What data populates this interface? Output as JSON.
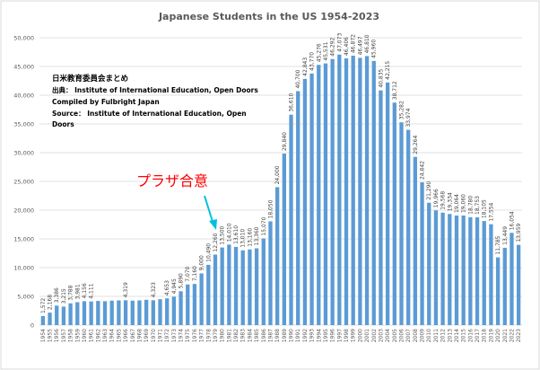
{
  "chart_data": {
    "type": "bar",
    "title": "Japanese Students in the US 1954-2023",
    "categories": [
      "1954",
      "1955",
      "1956",
      "1957",
      "1958",
      "1959",
      "1960",
      "1961",
      "1962",
      "1963",
      "1964",
      "1965",
      "1966",
      "1967",
      "1968",
      "1969",
      "1970",
      "1971",
      "1972",
      "1973",
      "1974",
      "1975",
      "1976",
      "1977",
      "1978",
      "1979",
      "1980",
      "1981",
      "1982",
      "1983",
      "1984",
      "1985",
      "1986",
      "1987",
      "1988",
      "1989",
      "1990",
      "1991",
      "1992",
      "1993",
      "1994",
      "1995",
      "1996",
      "1997",
      "1998",
      "1999",
      "2000",
      "2001",
      "2002",
      "2003",
      "2004",
      "2005",
      "2006",
      "2007",
      "2008",
      "2009",
      "2010",
      "2011",
      "2012",
      "2013",
      "2014",
      "2015",
      "2016",
      "2017",
      "2018",
      "2019",
      "2020",
      "2021",
      "2022",
      "2023"
    ],
    "values": [
      1572,
      2168,
      3386,
      3215,
      3788,
      3981,
      4156,
      4111,
      4200,
      4150,
      4250,
      4300,
      4319,
      4250,
      4300,
      4400,
      4323,
      4500,
      4653,
      4945,
      5890,
      7070,
      7160,
      9000,
      10490,
      12260,
      13500,
      14010,
      13610,
      13010,
      13160,
      13360,
      15070,
      18050,
      24000,
      29840,
      36610,
      40700,
      42843,
      43770,
      45276,
      45531,
      46292,
      47073,
      46406,
      46872,
      46497,
      46810,
      45960,
      40835,
      42215,
      38712,
      35282,
      33974,
      29264,
      24842,
      21290,
      19966,
      19568,
      19334,
      19064,
      19060,
      18780,
      18753,
      18105,
      17554,
      11785,
      13449,
      16054,
      13959
    ],
    "value_labels": [
      "1,572",
      "2,168",
      "3,386",
      "3,215",
      "3,788",
      "3,981",
      "4,156",
      "4,111",
      null,
      null,
      null,
      null,
      "4,319",
      null,
      null,
      null,
      "4,323",
      null,
      "4,653",
      "4,945",
      "5,890",
      "7,070",
      "7,160",
      "9,000",
      "10,490",
      "12,260",
      "13,500",
      "14,010",
      "13,610",
      "13,010",
      "13,160",
      "13,360",
      "15,070",
      "18,050",
      "24,000",
      "29,840",
      "36,610",
      "40,700",
      "42,843",
      "43,770",
      "45,276",
      "45,531",
      "46,292",
      "47,073",
      "46,406",
      "46,872",
      "46,497",
      "46,810",
      "45,960",
      "40,835",
      "42,215",
      "38,712",
      "35,282",
      "33,974",
      "29,264",
      "24,842",
      "21,290",
      "19,966",
      "19,568",
      "19,334",
      "19,064",
      "19,060",
      "18,780",
      "18,753",
      "18,105",
      "17,554",
      "11,785",
      "13,449",
      "16,054",
      "13,959"
    ],
    "color": "#5b9bd5",
    "ylim": [
      0,
      50000
    ],
    "yticks": [
      0,
      {
        "value": 5000,
        "label": "5,000"
      },
      {
        "value": 10000,
        "label": "10,000"
      },
      {
        "value": 15000,
        "label": "15,000"
      },
      {
        "value": 20000,
        "label": "20,000"
      },
      {
        "value": 25000,
        "label": "25,000"
      },
      {
        "value": 30000,
        "label": "30,000"
      },
      {
        "value": 35000,
        "label": "35,000"
      },
      {
        "value": 40000,
        "label": "40,000"
      },
      {
        "value": 45000,
        "label": "45,000"
      },
      {
        "value": 50000,
        "label": "50,000"
      }
    ],
    "grid": true,
    "annotations": [
      "日米教育委員会まとめ",
      "出典： Institute of International Education, Open Doors",
      "Compiled by Fulbright Japan",
      "Source： Institute of International Education, Open",
      "Doors",
      "プラザ合意"
    ]
  }
}
